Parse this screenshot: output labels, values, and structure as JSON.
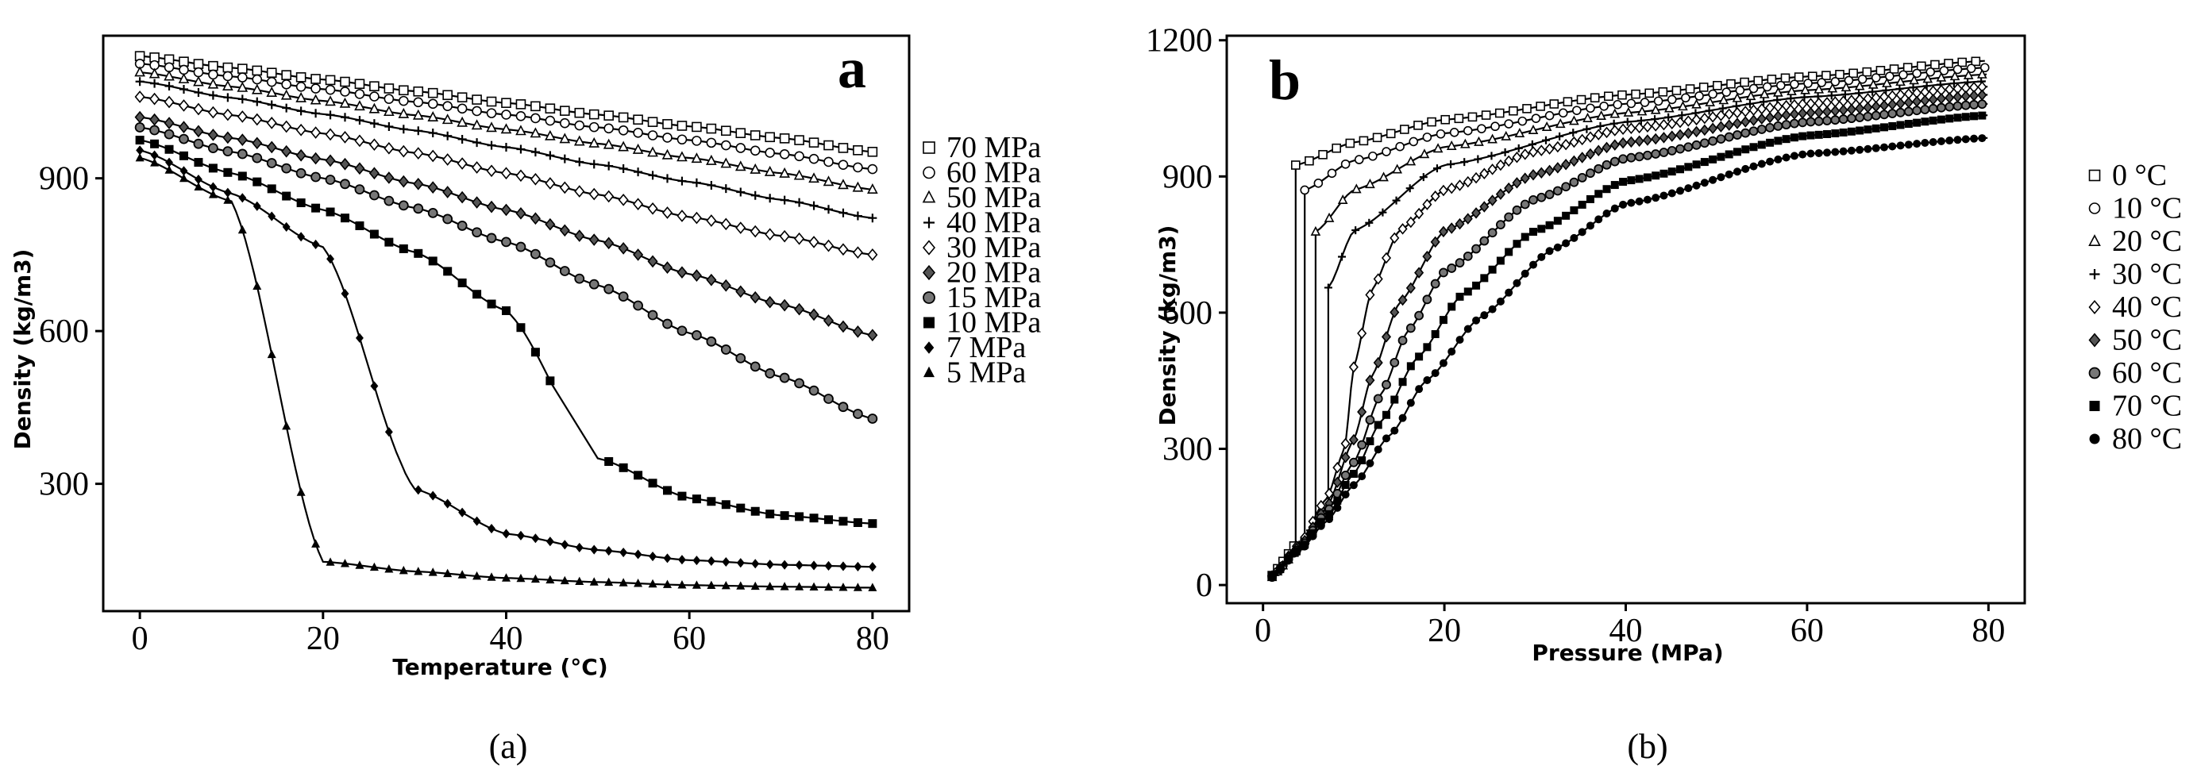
{
  "chart_data": [
    {
      "type": "line",
      "panel_label": "a",
      "caption": "(a)",
      "xlabel": "Temperature (°C)",
      "ylabel": "Density (kg/m3)",
      "xlim": [
        -4,
        84
      ],
      "ylim": [
        50,
        1180
      ],
      "xticks": [
        0,
        20,
        40,
        60,
        80
      ],
      "yticks": [
        300,
        600,
        900
      ],
      "x": [
        0,
        10,
        20,
        30,
        40,
        50,
        60,
        70,
        80
      ],
      "series": [
        {
          "name": "70 MPa",
          "marker": "square-open",
          "values": [
            1140,
            1117,
            1094,
            1071,
            1048,
            1025,
            1002,
            979,
            952
          ]
        },
        {
          "name": "60 MPa",
          "marker": "circle-open",
          "values": [
            1125,
            1100,
            1075,
            1050,
            1025,
            1000,
            975,
            948,
            918
          ]
        },
        {
          "name": "50 MPa",
          "marker": "triangle-open",
          "values": [
            1108,
            1080,
            1052,
            1024,
            996,
            968,
            940,
            910,
            878
          ]
        },
        {
          "name": "40 MPa",
          "marker": "plus",
          "values": [
            1090,
            1058,
            1026,
            994,
            961,
            927,
            893,
            858,
            822
          ]
        },
        {
          "name": "30 MPa",
          "marker": "diamond-open",
          "values": [
            1060,
            1024,
            988,
            950,
            910,
            868,
            824,
            787,
            750
          ]
        },
        {
          "name": "20 MPa",
          "marker": "crossed-diamond",
          "values": [
            1020,
            979,
            937,
            890,
            838,
            778,
            712,
            652,
            592
          ]
        },
        {
          "name": "15 MPa",
          "marker": "circle-dotted",
          "values": [
            1000,
            952,
            900,
            842,
            775,
            690,
            596,
            510,
            428
          ]
        },
        {
          "name": "10 MPa",
          "marker": "square-filled",
          "values": [
            975,
            910,
            838,
            755,
            640,
            350,
            272,
            238,
            222
          ]
        },
        {
          "name": "7 MPa",
          "marker": "diamond-filled",
          "values": [
            955,
            870,
            765,
            290,
            202,
            170,
            150,
            141,
            137
          ]
        },
        {
          "name": "5 MPa",
          "marker": "triangle-filled",
          "values": [
            940,
            855,
            147,
            128,
            115,
            107,
            101,
            98,
            96
          ]
        }
      ]
    },
    {
      "type": "line",
      "panel_label": "b",
      "caption": "(b)",
      "xlabel": "Pressure (MPa)",
      "ylabel": "Density (kg/m3)",
      "xlim": [
        -4,
        84
      ],
      "ylim": [
        -40,
        1210
      ],
      "xticks": [
        0,
        20,
        40,
        60,
        80
      ],
      "yticks": [
        0,
        300,
        600,
        900,
        1200
      ],
      "series": [
        {
          "name": "0 °C",
          "marker": "square-open",
          "vapor_end": [
            3.6,
            92
          ],
          "liquid": [
            [
              3.6,
              925
            ],
            [
              10,
              975
            ],
            [
              20,
              1025
            ],
            [
              40,
              1080
            ],
            [
              60,
              1120
            ],
            [
              80,
              1155
            ]
          ]
        },
        {
          "name": "10 °C",
          "marker": "circle-open",
          "vapor_end": [
            4.6,
            100
          ],
          "liquid": [
            [
              4.6,
              870
            ],
            [
              10,
              935
            ],
            [
              20,
              995
            ],
            [
              40,
              1060
            ],
            [
              60,
              1105
            ],
            [
              80,
              1140
            ]
          ]
        },
        {
          "name": "20 °C",
          "marker": "triangle-open",
          "vapor_end": [
            5.8,
            130
          ],
          "liquid": [
            [
              5.8,
              778
            ],
            [
              10,
              870
            ],
            [
              20,
              965
            ],
            [
              40,
              1040
            ],
            [
              60,
              1090
            ],
            [
              80,
              1125
            ]
          ]
        },
        {
          "name": "30 °C",
          "marker": "plus",
          "vapor_end": [
            7.2,
            175
          ],
          "liquid": [
            [
              7.2,
              655
            ],
            [
              10,
              780
            ],
            [
              20,
              925
            ],
            [
              40,
              1020
            ],
            [
              60,
              1075
            ],
            [
              80,
              1110
            ]
          ]
        },
        {
          "name": "40 °C",
          "marker": "diamond-open",
          "points": [
            [
              1,
              20
            ],
            [
              4,
              90
            ],
            [
              7,
              190
            ],
            [
              9,
              300
            ],
            [
              10,
              480
            ],
            [
              12,
              650
            ],
            [
              15,
              780
            ],
            [
              20,
              870
            ],
            [
              30,
              955
            ],
            [
              40,
              1005
            ],
            [
              60,
              1060
            ],
            [
              80,
              1098
            ]
          ]
        },
        {
          "name": "50 °C",
          "marker": "crossed-diamond",
          "points": [
            [
              1,
              20
            ],
            [
              4,
              85
            ],
            [
              7,
              170
            ],
            [
              10,
              320
            ],
            [
              12,
              460
            ],
            [
              15,
              620
            ],
            [
              20,
              780
            ],
            [
              30,
              905
            ],
            [
              40,
              975
            ],
            [
              60,
              1040
            ],
            [
              80,
              1080
            ]
          ]
        },
        {
          "name": "60 °C",
          "marker": "circle-dotted",
          "points": [
            [
              1,
              20
            ],
            [
              4,
              80
            ],
            [
              7,
              160
            ],
            [
              10,
              270
            ],
            [
              13,
              420
            ],
            [
              16,
              560
            ],
            [
              20,
              690
            ],
            [
              30,
              850
            ],
            [
              40,
              940
            ],
            [
              60,
              1020
            ],
            [
              80,
              1060
            ]
          ]
        },
        {
          "name": "70 °C",
          "marker": "square-filled",
          "points": [
            [
              1,
              20
            ],
            [
              4,
              78
            ],
            [
              7,
              150
            ],
            [
              10,
              245
            ],
            [
              13,
              360
            ],
            [
              17,
              500
            ],
            [
              22,
              640
            ],
            [
              30,
              780
            ],
            [
              40,
              890
            ],
            [
              60,
              990
            ],
            [
              80,
              1035
            ]
          ]
        },
        {
          "name": "80 °C",
          "marker": "circle-filled",
          "points": [
            [
              1,
              18
            ],
            [
              4,
              75
            ],
            [
              7,
              140
            ],
            [
              10,
              220
            ],
            [
              14,
              330
            ],
            [
              18,
              450
            ],
            [
              24,
              590
            ],
            [
              32,
              740
            ],
            [
              40,
              840
            ],
            [
              60,
              950
            ],
            [
              80,
              985
            ]
          ]
        }
      ]
    }
  ]
}
